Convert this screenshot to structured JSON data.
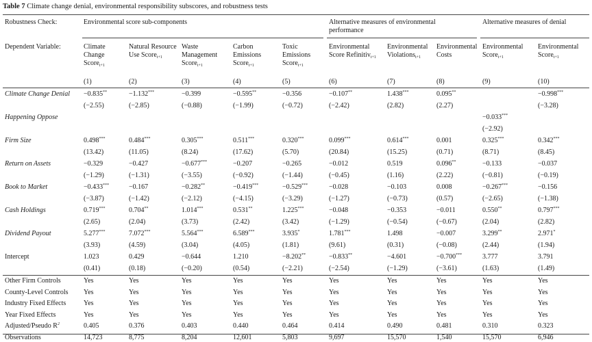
{
  "caption": {
    "label": "Table 7",
    "title": "Climate change denial, environmental responsibility subscores, and robustness tests"
  },
  "header": {
    "robustness_label": "Robustness Check:",
    "group1": "Environmental score sub-components",
    "group2": "Alternative measures of environmental performance",
    "group3": "Alternative measures of denial",
    "dependent_label": "Dependent Variable:"
  },
  "columns": [
    {
      "num": "(1)",
      "label": "Climate Change Score",
      "sub": "t+1"
    },
    {
      "num": "(2)",
      "label": "Natural Resource Use Score",
      "sub": "t+1"
    },
    {
      "num": "(3)",
      "label": "Waste Management Score",
      "sub": "t+1"
    },
    {
      "num": "(4)",
      "label": "Carbon Emissions Score",
      "sub": "t+1"
    },
    {
      "num": "(5)",
      "label": "Toxic Emissions Score",
      "sub": "t+1"
    },
    {
      "num": "(6)",
      "label": "Environmental Score Refinitiv",
      "sub": "t+1"
    },
    {
      "num": "(7)",
      "label": "Environmental Violations",
      "sub": "t+1"
    },
    {
      "num": "(8)",
      "label": "Environmental Costs",
      "sub": ""
    },
    {
      "num": "(9)",
      "label": "Environmental Score",
      "sub": "t+1"
    },
    {
      "num": "(10)",
      "label": "Environmental Score",
      "sub": "t+1"
    }
  ],
  "rows": [
    {
      "name": "Climate Change Denial",
      "italic": true,
      "coef": [
        [
          "−0.835",
          "**"
        ],
        [
          "−1.132",
          "***"
        ],
        [
          "−0.399",
          ""
        ],
        [
          "−0.595",
          "**"
        ],
        [
          "−0.356",
          ""
        ],
        [
          "−0.107",
          "**"
        ],
        [
          "1.438",
          "***"
        ],
        [
          "0.095",
          "**"
        ],
        [
          "",
          ""
        ],
        [
          "−0.998",
          "***"
        ]
      ],
      "t": [
        "(−2.55)",
        "(−2.85)",
        "(−0.88)",
        "(−1.99)",
        "(−0.72)",
        "(−2.42)",
        "(2.82)",
        "(2.27)",
        "",
        "(−3.28)"
      ]
    },
    {
      "name": "Happening Oppose",
      "italic": true,
      "coef": [
        [
          "",
          ""
        ],
        [
          "",
          ""
        ],
        [
          "",
          ""
        ],
        [
          "",
          ""
        ],
        [
          "",
          ""
        ],
        [
          "",
          ""
        ],
        [
          "",
          ""
        ],
        [
          "",
          ""
        ],
        [
          "−0.033",
          "***"
        ],
        [
          "",
          ""
        ]
      ],
      "t": [
        "",
        "",
        "",
        "",
        "",
        "",
        "",
        "",
        "(−2.92)",
        ""
      ]
    },
    {
      "name": "Firm Size",
      "italic": true,
      "coef": [
        [
          "0.498",
          "***"
        ],
        [
          "0.484",
          "***"
        ],
        [
          "0.305",
          "***"
        ],
        [
          "0.511",
          "***"
        ],
        [
          "0.320",
          "***"
        ],
        [
          "0.099",
          "***"
        ],
        [
          "0.614",
          "***"
        ],
        [
          "0.001",
          ""
        ],
        [
          "0.325",
          "***"
        ],
        [
          "0.342",
          "***"
        ]
      ],
      "t": [
        "(13.42)",
        "(11.05)",
        "(8.24)",
        "(17.62)",
        "(5.70)",
        "(20.84)",
        "(15.25)",
        "(0.71)",
        "(8.71)",
        "(8.45)"
      ]
    },
    {
      "name": "Return on Assets",
      "italic": true,
      "coef": [
        [
          "−0.329",
          ""
        ],
        [
          "−0.427",
          ""
        ],
        [
          "−0.677",
          "***"
        ],
        [
          "−0.207",
          ""
        ],
        [
          "−0.265",
          ""
        ],
        [
          "−0.012",
          ""
        ],
        [
          "0.519",
          ""
        ],
        [
          "0.096",
          "**"
        ],
        [
          "−0.133",
          ""
        ],
        [
          "−0.037",
          ""
        ]
      ],
      "t": [
        "(−1.29)",
        "(−1.31)",
        "(−3.55)",
        "(−0.92)",
        "(−1.44)",
        "(−0.45)",
        "(1.16)",
        "(2.22)",
        "(−0.81)",
        "(−0.19)"
      ]
    },
    {
      "name": "Book to Market",
      "italic": true,
      "coef": [
        [
          "−0.433",
          "***"
        ],
        [
          "−0.167",
          ""
        ],
        [
          "−0.282",
          "**"
        ],
        [
          "−0.419",
          "***"
        ],
        [
          "−0.529",
          "***"
        ],
        [
          "−0.028",
          ""
        ],
        [
          "−0.103",
          ""
        ],
        [
          "0.008",
          ""
        ],
        [
          "−0.267",
          "***"
        ],
        [
          "−0.156",
          ""
        ]
      ],
      "t": [
        "(−3.87)",
        "(−1.42)",
        "(−2.12)",
        "(−4.15)",
        "(−3.29)",
        "(−1.27)",
        "(−0.73)",
        "(0.57)",
        "(−2.65)",
        "(−1.38)"
      ]
    },
    {
      "name": "Cash Holdings",
      "italic": true,
      "coef": [
        [
          "0.719",
          "***"
        ],
        [
          "0.704",
          "**"
        ],
        [
          "1.014",
          "***"
        ],
        [
          "0.531",
          "**"
        ],
        [
          "1.225",
          "***"
        ],
        [
          "−0.048",
          ""
        ],
        [
          "−0.353",
          ""
        ],
        [
          "−0.011",
          ""
        ],
        [
          "0.550",
          "**"
        ],
        [
          "0.797",
          "***"
        ]
      ],
      "t": [
        "(2.65)",
        "(2.04)",
        "(3.73)",
        "(2.42)",
        "(3.42)",
        "(−1.29)",
        "(−0.54)",
        "(−0.67)",
        "(2.04)",
        "(2.82)"
      ]
    },
    {
      "name": "Dividend Payout",
      "italic": true,
      "coef": [
        [
          "5.277",
          "***"
        ],
        [
          "7.072",
          "***"
        ],
        [
          "5.564",
          "***"
        ],
        [
          "6.589",
          "***"
        ],
        [
          "3.935",
          "*"
        ],
        [
          "1.781",
          "***"
        ],
        [
          "1.498",
          ""
        ],
        [
          "−0.007",
          ""
        ],
        [
          "3.299",
          "**"
        ],
        [
          "2.971",
          "*"
        ]
      ],
      "t": [
        "(3.93)",
        "(4.59)",
        "(3.04)",
        "(4.05)",
        "(1.81)",
        "(9.61)",
        "(0.31)",
        "(−0.08)",
        "(2.44)",
        "(1.94)"
      ]
    },
    {
      "name": "Intercept",
      "italic": false,
      "coef": [
        [
          "1.023",
          ""
        ],
        [
          "0.429",
          ""
        ],
        [
          "−0.644",
          ""
        ],
        [
          "1.210",
          ""
        ],
        [
          "−8.202",
          "**"
        ],
        [
          "−0.833",
          "**"
        ],
        [
          "−4.601",
          ""
        ],
        [
          "−0.700",
          "***"
        ],
        [
          "3.777",
          ""
        ],
        [
          "3.791",
          ""
        ]
      ],
      "t": [
        "(0.41)",
        "(0.18)",
        "(−0.20)",
        "(0.54)",
        "(−2.21)",
        "(−2.54)",
        "(−1.29)",
        "(−3.61)",
        "(1.63)",
        "(1.49)"
      ]
    }
  ],
  "footer_rows": [
    {
      "name": "Other Firm Controls",
      "values": [
        "Yes",
        "Yes",
        "Yes",
        "Yes",
        "Yes",
        "Yes",
        "Yes",
        "Yes",
        "Yes",
        "Yes"
      ]
    },
    {
      "name": "County-Level Controls",
      "values": [
        "Yes",
        "Yes",
        "Yes",
        "Yes",
        "Yes",
        "Yes",
        "Yes",
        "Yes",
        "Yes",
        "Yes"
      ]
    },
    {
      "name": "Industry Fixed Effects",
      "values": [
        "Yes",
        "Yes",
        "Yes",
        "Yes",
        "Yes",
        "Yes",
        "Yes",
        "Yes",
        "Yes",
        "Yes"
      ]
    },
    {
      "name": "Year Fixed Effects",
      "values": [
        "Yes",
        "Yes",
        "Yes",
        "Yes",
        "Yes",
        "Yes",
        "Yes",
        "Yes",
        "Yes",
        "Yes"
      ]
    },
    {
      "name": "Adjusted/Pseudo R",
      "sup": "2",
      "values": [
        "0.405",
        "0.376",
        "0.403",
        "0.440",
        "0.464",
        "0.414",
        "0.490",
        "0.481",
        "0.310",
        "0.323"
      ]
    },
    {
      "name": "Observations",
      "values": [
        "14,723",
        "8,775",
        "8,204",
        "12,601",
        "5,803",
        "9,697",
        "15,570",
        "1,540",
        "15,570",
        "6,946"
      ]
    }
  ]
}
